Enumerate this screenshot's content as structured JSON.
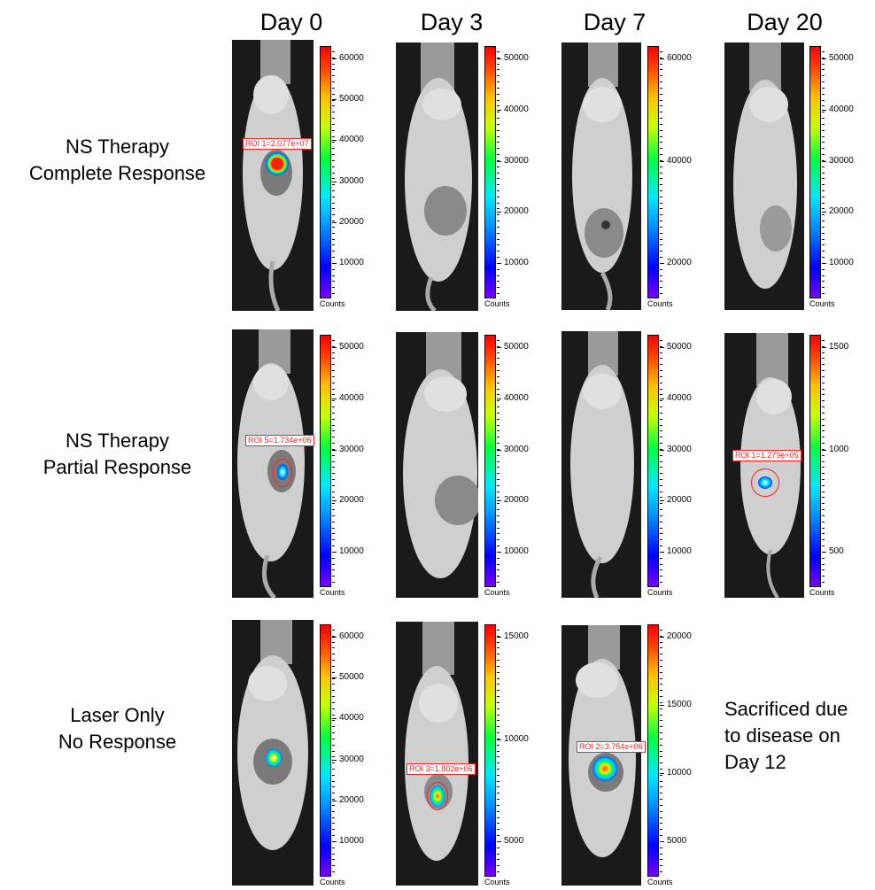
{
  "columns": [
    {
      "label": "Day 0"
    },
    {
      "label": "Day 3"
    },
    {
      "label": "Day 7"
    },
    {
      "label": "Day 20"
    }
  ],
  "rows": [
    {
      "line1": "NS Therapy",
      "line2": "Complete Response"
    },
    {
      "line1": "NS Therapy",
      "line2": "Partial Response"
    },
    {
      "line1": "Laser Only",
      "line2": "No Response"
    }
  ],
  "scales": {
    "counts_label": "Counts",
    "r1c1": [
      "60000",
      "50000",
      "40000",
      "30000",
      "20000",
      "10000"
    ],
    "r1c2": [
      "50000",
      "40000",
      "30000",
      "20000",
      "10000"
    ],
    "r1c3": [
      "60000",
      "40000",
      "20000"
    ],
    "r1c4": [
      "50000",
      "40000",
      "30000",
      "20000",
      "10000"
    ],
    "r2c1": [
      "50000",
      "40000",
      "30000",
      "20000",
      "10000"
    ],
    "r2c2": [
      "50000",
      "40000",
      "30000",
      "20000",
      "10000"
    ],
    "r2c3": [
      "50000",
      "40000",
      "30000",
      "20000",
      "10000"
    ],
    "r2c4": [
      "1500",
      "1000",
      "500"
    ],
    "r3c1": [
      "60000",
      "50000",
      "40000",
      "30000",
      "20000",
      "10000"
    ],
    "r3c2": [
      "15000",
      "10000",
      "5000"
    ],
    "r3c3": [
      "20000",
      "15000",
      "10000",
      "5000"
    ]
  },
  "rois": {
    "r1c1": "ROI 1=2.077e+07",
    "r2c1": "ROI 5=1.734e+06",
    "r2c4": "ROI 1=1.279e+05",
    "r3c2": "ROI 3=1.802e+06",
    "r3c3": "ROI 2=3.754e+06"
  },
  "note": {
    "line1": "Sacrificed due",
    "line2": "to disease on",
    "line3": "Day 12"
  }
}
